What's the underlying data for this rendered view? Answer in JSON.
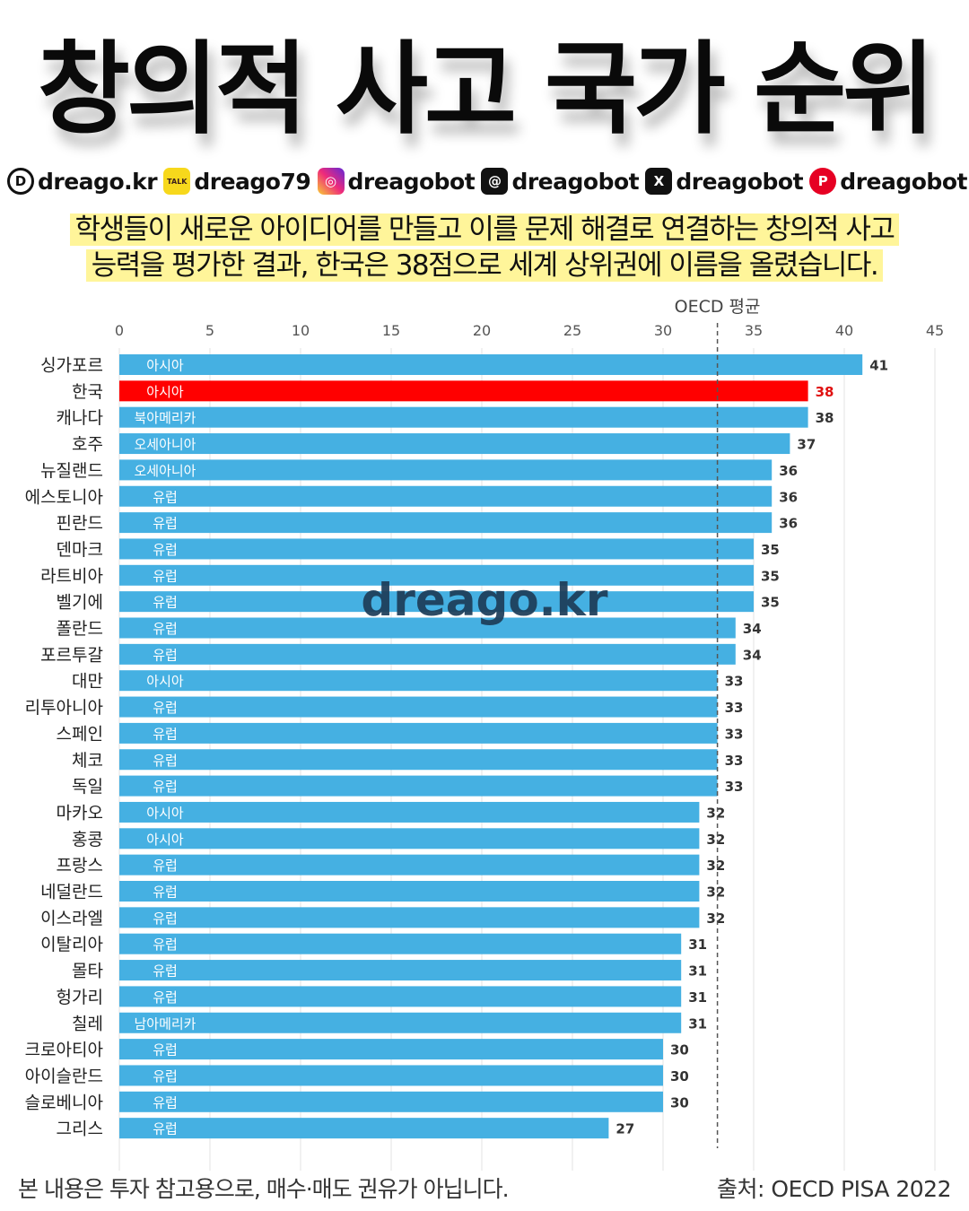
{
  "title": "창의적 사고 국가 순위",
  "social": [
    {
      "icon": "dreago-web-icon",
      "glyph": "D",
      "label": "dreago.kr"
    },
    {
      "icon": "kakaotalk-icon",
      "glyph": "TALK",
      "label": "dreago79"
    },
    {
      "icon": "instagram-icon",
      "glyph": "◎",
      "label": "dreagobot"
    },
    {
      "icon": "threads-icon",
      "glyph": "@",
      "label": "dreagobot"
    },
    {
      "icon": "x-icon",
      "glyph": "X",
      "label": "dreagobot"
    },
    {
      "icon": "pinterest-icon",
      "glyph": "P",
      "label": "dreagobot"
    }
  ],
  "subtitle_line1": "학생들이 새로운 아이디어를 만들고 이를 문제 해결로 연결하는 창의적 사고",
  "subtitle_line2": "능력을 평가한 결과, 한국은 38점으로 세계 상위권에 이름을 올렸습니다.",
  "watermark": "dreago.kr",
  "footer_left": "본 내용은 투자 참고용으로, 매수·매도 권유가 아닙니다.",
  "footer_right": "출처: OECD PISA 2022",
  "colors": {
    "bar": "#45b0e2",
    "highlight": "#ff0000",
    "highlight_value": "#e01010",
    "value_text": "#333333"
  },
  "chart_data": {
    "type": "bar",
    "orientation": "horizontal",
    "xlim": [
      0,
      45
    ],
    "xticks": [
      "0",
      "5",
      "10",
      "15",
      "20",
      "25",
      "30",
      "35",
      "40",
      "45"
    ],
    "grid": true,
    "reference_line": {
      "label": "OECD 평균",
      "value": 33
    },
    "highlight": "한국",
    "categories": [
      "싱가포르",
      "한국",
      "캐나다",
      "호주",
      "뉴질랜드",
      "에스토니아",
      "핀란드",
      "덴마크",
      "라트비아",
      "벨기에",
      "폴란드",
      "포르투갈",
      "대만",
      "리투아니아",
      "스페인",
      "체코",
      "독일",
      "마카오",
      "홍콩",
      "프랑스",
      "네덜란드",
      "이스라엘",
      "이탈리아",
      "몰타",
      "헝가리",
      "칠레",
      "크로아티아",
      "아이슬란드",
      "슬로베니아",
      "그리스"
    ],
    "values": [
      41,
      38,
      38,
      37,
      36,
      36,
      36,
      35,
      35,
      35,
      34,
      34,
      33,
      33,
      33,
      33,
      33,
      32,
      32,
      32,
      32,
      32,
      31,
      31,
      31,
      31,
      30,
      30,
      30,
      27
    ],
    "regions": [
      "아시아",
      "아시아",
      "북아메리카",
      "오세아니아",
      "오세아니아",
      "유럽",
      "유럽",
      "유럽",
      "유럽",
      "유럽",
      "유럽",
      "유럽",
      "아시아",
      "유럽",
      "유럽",
      "유럽",
      "유럽",
      "아시아",
      "아시아",
      "유럽",
      "유럽",
      "유럽",
      "유럽",
      "유럽",
      "유럽",
      "남아메리카",
      "유럽",
      "유럽",
      "유럽",
      "유럽"
    ]
  }
}
